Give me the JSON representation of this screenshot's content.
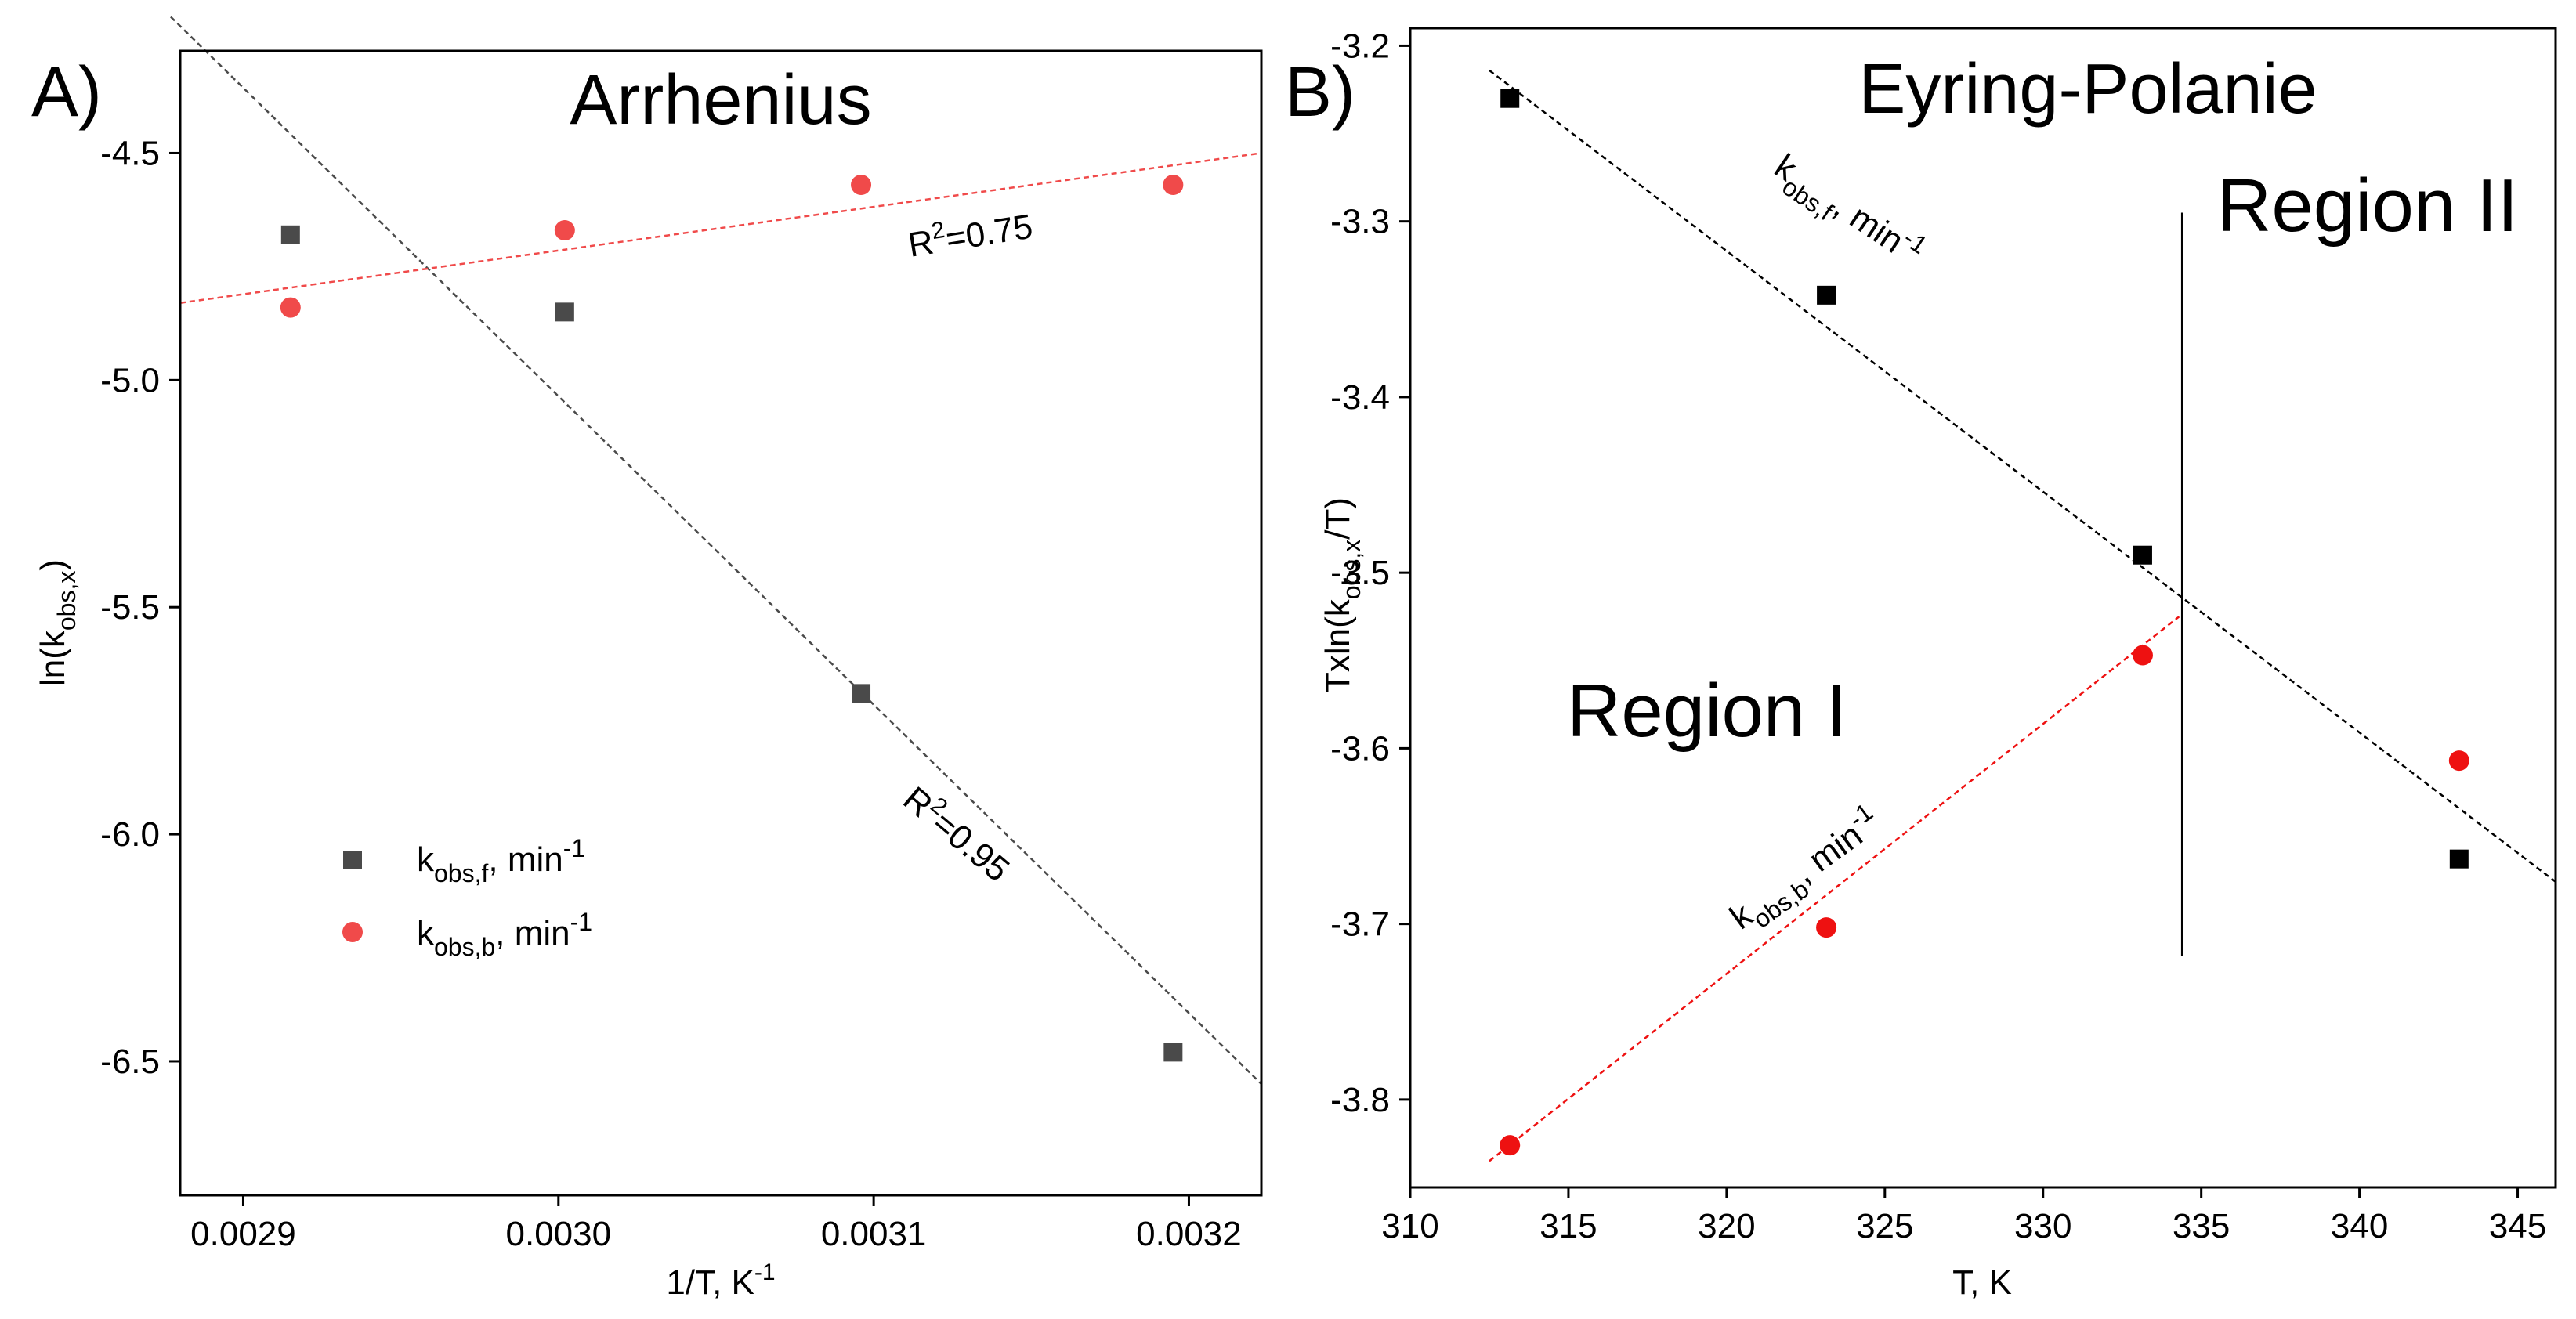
{
  "chart_data": [
    {
      "panel": "A)",
      "type": "scatter",
      "title": "Arrhenius",
      "xlabel": "1/T, K-1",
      "ylabel": "ln(kobs,x)",
      "xlim": [
        0.00288,
        0.003223
      ],
      "ylim": [
        -6.795,
        -4.275
      ],
      "xticks": [
        0.0029,
        0.003,
        0.0031,
        0.0032
      ],
      "xtick_labels": [
        "0.0029",
        "0.0030",
        "0.0031",
        "0.0032"
      ],
      "yticks": [
        -4.5,
        -5.0,
        -5.5,
        -6.0,
        -6.5
      ],
      "ytick_labels": [
        "-4.5",
        "-5.0",
        "-5.5",
        "-6.0",
        "-6.5"
      ],
      "grid": false,
      "legend_position": "lower-left",
      "series": [
        {
          "name": "kobs,f, min-1",
          "marker": "square",
          "color": "#4a4a4a",
          "x": [
            0.002915,
            0.003002,
            0.003096,
            0.003195
          ],
          "y": [
            -4.68,
            -4.85,
            -5.69,
            -6.48
          ]
        },
        {
          "name": "kobs,b, min-1",
          "marker": "circle",
          "color": "#f04a4a",
          "x": [
            0.002915,
            0.003002,
            0.003096,
            0.003195
          ],
          "y": [
            -4.84,
            -4.67,
            -4.57,
            -4.57
          ]
        }
      ],
      "fits": [
        {
          "series": "kobs,f, min-1",
          "color": "#4a4a4a",
          "x": [
            0.002877,
            0.003223
          ],
          "y": [
            -4.2,
            -6.55
          ],
          "label": "R2=0.95"
        },
        {
          "series": "kobs,b, min-1",
          "color": "#f04a4a",
          "x": [
            0.00288,
            0.003223
          ],
          "y": [
            -4.83,
            -4.5
          ],
          "label": "R2=0.75"
        }
      ],
      "legend": {
        "f": {
          "base": "k",
          "sub": "obs,f",
          "mid": ", min",
          "sup": "-1"
        },
        "b": {
          "base": "k",
          "sub": "obs,b",
          "mid": ", min",
          "sup": "-1"
        }
      },
      "ylabel_parts": {
        "base": "ln(k",
        "sub": "obs,x",
        "end": ")"
      },
      "xlabel_parts": {
        "base": "1/T, K",
        "sup": "-1"
      },
      "annotations": {
        "r2_b": {
          "base": "R",
          "sup": "2",
          "rest": "=0.75"
        },
        "r2_f": {
          "base": "R",
          "sup": "2",
          "rest": "=0.95"
        }
      }
    },
    {
      "panel": "B)",
      "type": "scatter",
      "title": "Eyring-Polanie",
      "xlabel": "T, K",
      "ylabel": "Txln(kobs,x/T)",
      "xlim": [
        310,
        346.2
      ],
      "ylim": [
        -3.85,
        -3.19
      ],
      "xticks": [
        310,
        315,
        320,
        325,
        330,
        335,
        340,
        345
      ],
      "xtick_labels": [
        "310",
        "315",
        "320",
        "325",
        "330",
        "335",
        "340",
        "345"
      ],
      "yticks": [
        -3.2,
        -3.3,
        -3.4,
        -3.5,
        -3.6,
        -3.7,
        -3.8
      ],
      "ytick_labels": [
        "-3.2",
        "-3.3",
        "-3.4",
        "-3.5",
        "-3.6",
        "-3.7",
        "-3.8"
      ],
      "grid": false,
      "series": [
        {
          "name": "kobs,f, min-1",
          "marker": "square",
          "color": "#000000",
          "x": [
            313.15,
            323.15,
            333.15,
            343.15
          ],
          "y": [
            -3.23,
            -3.342,
            -3.49,
            -3.663
          ]
        },
        {
          "name": "kobs,b, min-1",
          "marker": "circle",
          "color": "#ee1111",
          "x": [
            313.15,
            323.15,
            333.15,
            343.15
          ],
          "y": [
            -3.826,
            -3.702,
            -3.547,
            -3.607
          ]
        }
      ],
      "fits": [
        {
          "series": "kobs,f, min-1",
          "color": "#000000",
          "x": [
            312.5,
            346.2
          ],
          "y": [
            -3.214,
            -3.676
          ]
        },
        {
          "series": "kobs,b, min-1",
          "color": "#ee1111",
          "x": [
            312.5,
            334.3
          ],
          "y": [
            -3.835,
            -3.525
          ]
        }
      ],
      "boundary_x": 334.4,
      "boundary_y": [
        -3.295,
        -3.718
      ],
      "regions": [
        "Region I",
        "Region II"
      ],
      "line_labels": {
        "f": {
          "base": "k",
          "sub": "obs,f",
          "mid": ", min",
          "sup": "-1"
        },
        "b": {
          "base": "k",
          "sub": "obs,b",
          "mid": ", min",
          "sup": "-1"
        }
      },
      "ylabel_parts": {
        "base": "Txln(k",
        "sub": "obs,x",
        "end": "/T)"
      }
    }
  ]
}
